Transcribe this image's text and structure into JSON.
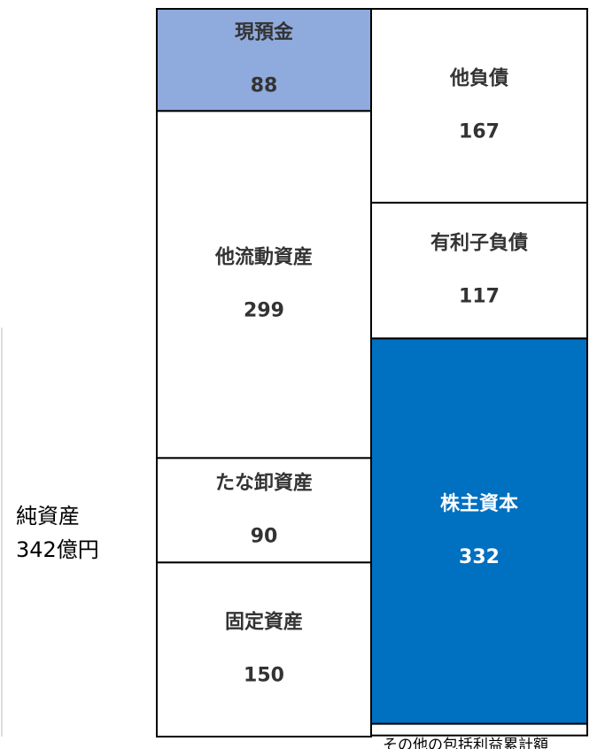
{
  "chart_data": {
    "type": "balance_sheet",
    "columns": [
      {
        "segments": [
          {
            "name": "現預金",
            "value": 88,
            "color": "#8faadc",
            "text_color": "#333333"
          },
          {
            "name": "他流動資産",
            "value": 299,
            "color": "#ffffff",
            "text_color": "#333333"
          },
          {
            "name": "たな卸資産",
            "value": 90,
            "color": "#ffffff",
            "text_color": "#333333"
          },
          {
            "name": "固定資産",
            "value": 150,
            "color": "#ffffff",
            "text_color": "#333333"
          }
        ]
      },
      {
        "segments": [
          {
            "name": "他負債",
            "value": 167,
            "color": "#ffffff",
            "text_color": "#333333"
          },
          {
            "name": "有利子負債",
            "value": 117,
            "color": "#ffffff",
            "text_color": "#333333"
          },
          {
            "name": "株主資本",
            "value": 332,
            "color": "#0070c0",
            "text_color": "#ffffff"
          },
          {
            "name": "その他の包括利益累計額",
            "value": 10,
            "color": "#ffffff",
            "text_color": "#000000",
            "hide_value": true
          }
        ]
      }
    ],
    "annotation": [
      "純資産",
      "342億円"
    ]
  }
}
